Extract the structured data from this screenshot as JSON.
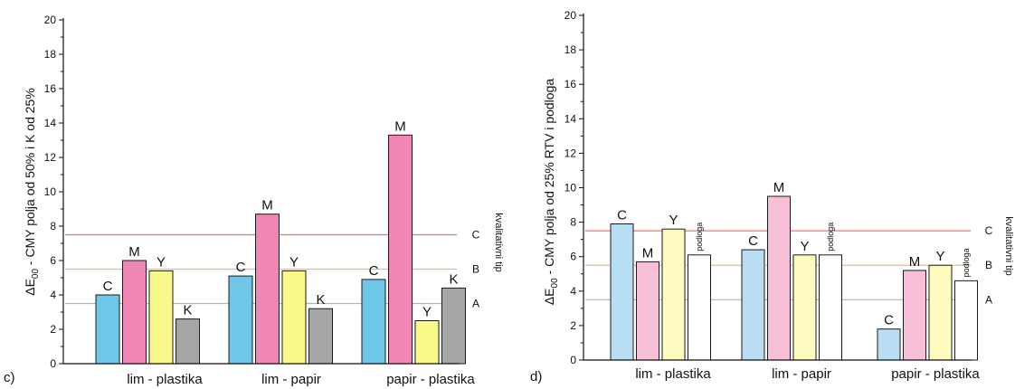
{
  "chart_data": [
    {
      "panel": "c)",
      "type": "bar",
      "categories": [
        "lim - plastika",
        "lim - papir",
        "papir - plastika"
      ],
      "series": [
        {
          "name": "C",
          "color": "#6ec6e9",
          "values": [
            4.0,
            5.1,
            4.9
          ]
        },
        {
          "name": "M",
          "color": "#ef86b3",
          "values": [
            6.0,
            8.7,
            13.3
          ]
        },
        {
          "name": "Y",
          "color": "#fbf88a",
          "values": [
            5.4,
            5.4,
            2.5
          ]
        },
        {
          "name": "K",
          "color": "#a6a6a6",
          "values": [
            2.6,
            3.2,
            4.4
          ]
        }
      ],
      "ylabel_pre": "ΔE",
      "ylabel_sub": "00",
      "ylabel_post": " - CMY polja od 50% i K od 25%",
      "ylim": [
        0,
        20
      ],
      "yticks": [
        "0",
        "2",
        "4",
        "6",
        "8",
        "10",
        "12",
        "14",
        "16",
        "18",
        "20"
      ],
      "thresholds": [
        {
          "label": "C",
          "value": 7.5,
          "color": "#e8757a"
        },
        {
          "label": "B",
          "value": 5.5,
          "color": "#f0bd7e"
        },
        {
          "label": "A",
          "value": 3.5,
          "color": "#8fd17f"
        }
      ],
      "threshold_group_label": "kvalitativni tip",
      "grid": false
    },
    {
      "panel": "d)",
      "type": "bar",
      "categories": [
        "lim - plastika",
        "lim - papir",
        "papir - plastika"
      ],
      "series": [
        {
          "name": "C",
          "color": "#b9def3",
          "values": [
            7.9,
            6.4,
            1.8
          ]
        },
        {
          "name": "M",
          "color": "#f7bfd8",
          "values": [
            5.7,
            9.5,
            5.2
          ]
        },
        {
          "name": "Y",
          "color": "#fdfbc0",
          "values": [
            7.6,
            6.1,
            5.5
          ]
        },
        {
          "name": "podloga",
          "color": "#ffffff",
          "values": [
            6.1,
            6.1,
            4.6
          ]
        }
      ],
      "ylabel_pre": "ΔE",
      "ylabel_sub": "00",
      "ylabel_post": " - CMY polja od 25% RTV i podloga",
      "ylim": [
        0,
        20
      ],
      "yticks": [
        "0",
        "2",
        "4",
        "6",
        "8",
        "10",
        "12",
        "14",
        "16",
        "18",
        "20"
      ],
      "thresholds": [
        {
          "label": "C",
          "value": 7.5,
          "color": "#e8757a"
        },
        {
          "label": "B",
          "value": 5.5,
          "color": "#f0bd7e"
        },
        {
          "label": "A",
          "value": 3.5,
          "color": "#8fd17f"
        }
      ],
      "threshold_group_label": "kvalitativni tip",
      "grid": false
    }
  ]
}
